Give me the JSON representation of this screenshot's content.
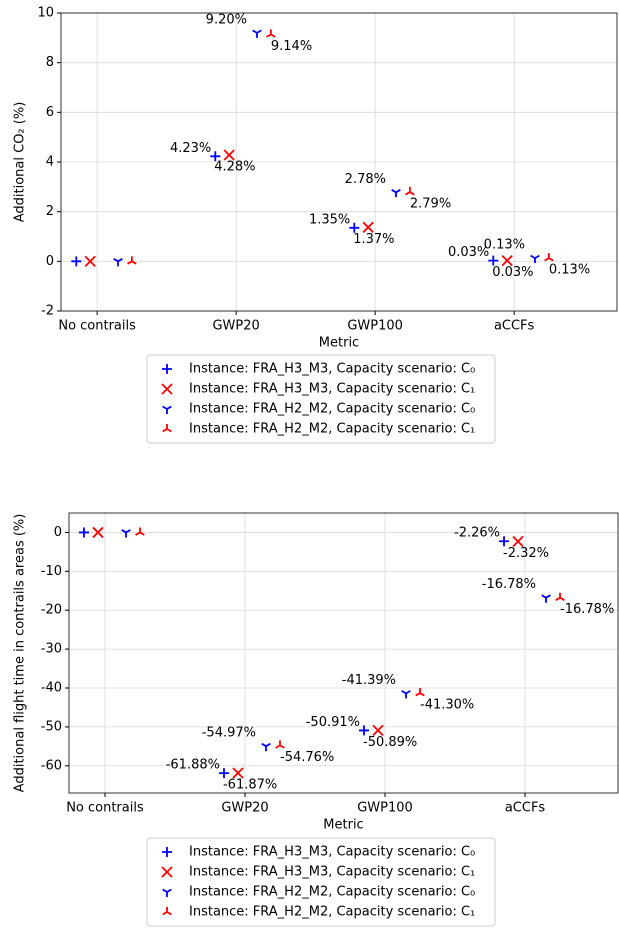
{
  "chart_data": [
    {
      "type": "scatter",
      "xlabel": "Metric",
      "ylabel": "Additional CO₂ (%)",
      "categories": [
        "No contrails",
        "GWP20",
        "GWP100",
        "aCCFs"
      ],
      "ylim": [
        -2,
        10
      ],
      "yticks": [
        -2,
        0,
        2,
        4,
        6,
        8,
        10
      ],
      "grid": true,
      "series": [
        {
          "name": "Instance: FRA_H3_M3, Capacity scenario: C₀",
          "color": "#0000ff",
          "marker": "+",
          "values": [
            0,
            4.23,
            1.35,
            0.03
          ],
          "value_labels": [
            null,
            "4.23%",
            "1.35%",
            "0.03%"
          ]
        },
        {
          "name": "Instance: FRA_H3_M3, Capacity scenario: C₁",
          "color": "#ff0000",
          "marker": "x",
          "values": [
            0,
            4.28,
            1.37,
            0.03
          ],
          "value_labels": [
            null,
            "4.28%",
            "1.37%",
            "0.03%"
          ]
        },
        {
          "name": "Instance: FRA_H2_M2, Capacity scenario: C₀",
          "color": "#0000ff",
          "marker": "1",
          "values": [
            0,
            9.2,
            2.78,
            0.13
          ],
          "value_labels": [
            null,
            "9.20%",
            "2.78%",
            "0.13%"
          ]
        },
        {
          "name": "Instance: FRA_H2_M2, Capacity scenario: C₁",
          "color": "#ff0000",
          "marker": "2",
          "values": [
            0,
            9.14,
            2.79,
            0.13
          ],
          "value_labels": [
            null,
            "9.14%",
            "2.79%",
            "0.13%"
          ]
        }
      ]
    },
    {
      "type": "scatter",
      "xlabel": "Metric",
      "ylabel": "Additional flight time in contrails areas (%)",
      "categories": [
        "No contrails",
        "GWP20",
        "GWP100",
        "aCCFs"
      ],
      "ylim": [
        -67,
        5
      ],
      "yticks": [
        -60,
        -50,
        -40,
        -30,
        -20,
        -10,
        0
      ],
      "grid": true,
      "series": [
        {
          "name": "Instance: FRA_H3_M3, Capacity scenario: C₀",
          "color": "#0000ff",
          "marker": "+",
          "values": [
            0,
            -61.88,
            -50.91,
            -2.26
          ],
          "value_labels": [
            null,
            "-61.88%",
            "-50.91%",
            "-2.26%"
          ]
        },
        {
          "name": "Instance: FRA_H3_M3, Capacity scenario: C₁",
          "color": "#ff0000",
          "marker": "x",
          "values": [
            0,
            -61.87,
            -50.89,
            -2.32
          ],
          "value_labels": [
            null,
            "-61.87%",
            "-50.89%",
            "-2.32%"
          ]
        },
        {
          "name": "Instance: FRA_H2_M2, Capacity scenario: C₀",
          "color": "#0000ff",
          "marker": "1",
          "values": [
            0,
            -54.97,
            -41.39,
            -16.78
          ],
          "value_labels": [
            null,
            "-54.97%",
            "-41.39%",
            "-16.78%"
          ]
        },
        {
          "name": "Instance: FRA_H2_M2, Capacity scenario: C₁",
          "color": "#ff0000",
          "marker": "2",
          "values": [
            0,
            -54.76,
            -41.3,
            -16.78
          ],
          "value_labels": [
            null,
            "-54.76%",
            "-41.30%",
            "-16.78%"
          ]
        }
      ]
    }
  ]
}
